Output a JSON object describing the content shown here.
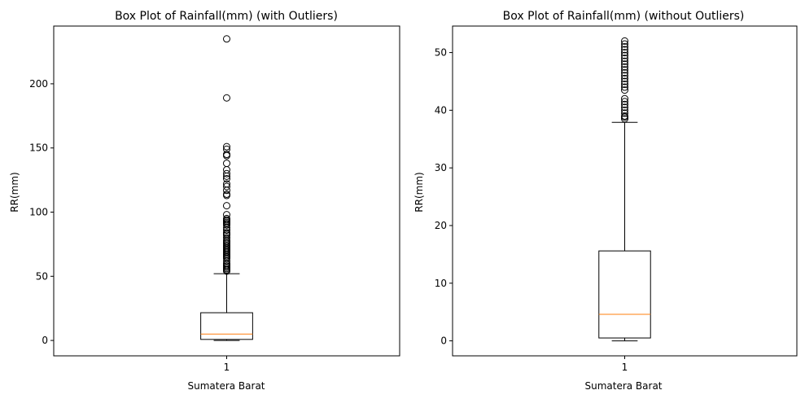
{
  "chart_data": [
    {
      "type": "box",
      "title": "Box Plot of Rainfall(mm) (with Outliers)",
      "xlabel": "Sumatera Barat",
      "ylabel": "RR(mm)",
      "categories": [
        "1"
      ],
      "ylim": [
        -12,
        245
      ],
      "yticks": [
        0,
        50,
        100,
        150,
        200
      ],
      "box": {
        "whisker_low": 0,
        "q1": 0.8,
        "median": 5.0,
        "q3": 21.6,
        "whisker_high": 52.0
      },
      "outliers": [
        54,
        55,
        56,
        57,
        58,
        59,
        60,
        62,
        64,
        65,
        66,
        67,
        68,
        69,
        70,
        71,
        72,
        73,
        74,
        75,
        76,
        77,
        78,
        80,
        82,
        83,
        84,
        86,
        88,
        90,
        91,
        92,
        93,
        94,
        95,
        98,
        105,
        113,
        114,
        117,
        120,
        122,
        126,
        128,
        130,
        133,
        138,
        144,
        145,
        149,
        151,
        189,
        235
      ],
      "colors": {
        "box": "#000000",
        "median": "#ff7f0e"
      }
    },
    {
      "type": "box",
      "title": "Box Plot of Rainfall(mm) (without Outliers)",
      "xlabel": "Sumatera Barat",
      "ylabel": "RR(mm)",
      "categories": [
        "1"
      ],
      "ylim": [
        -2.6,
        54.6
      ],
      "yticks": [
        0,
        10,
        20,
        30,
        40,
        50
      ],
      "box": {
        "whisker_low": 0,
        "q1": 0.5,
        "median": 4.6,
        "q3": 15.6,
        "whisker_high": 37.9
      },
      "outliers": [
        38.5,
        38.8,
        39.0,
        39.5,
        40.0,
        40.5,
        41.0,
        41.5,
        42.0,
        43.5,
        44.0,
        44.5,
        45.0,
        45.5,
        46.0,
        46.5,
        47.0,
        47.5,
        48.0,
        48.5,
        49.0,
        49.5,
        50.0,
        50.5,
        51.0,
        51.5,
        52.0
      ],
      "colors": {
        "box": "#000000",
        "median": "#ff7f0e"
      }
    }
  ]
}
